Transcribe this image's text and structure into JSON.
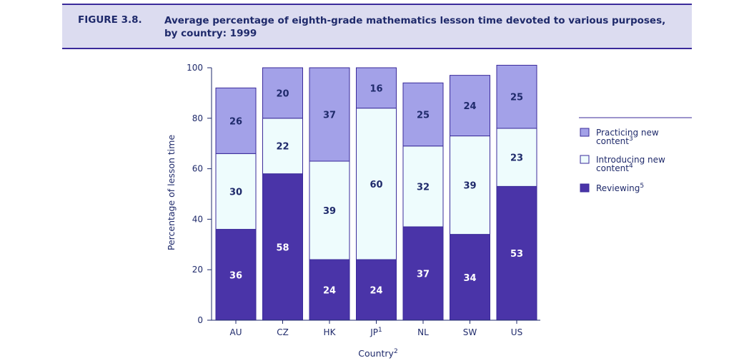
{
  "header": {
    "figure_label": "FIGURE 3.8.",
    "title": "Average percentage of eighth-grade mathematics lesson time devoted to various purposes, by country: 1999"
  },
  "colors": {
    "reviewing": "#4a34a8",
    "introducing": "#eefcfd",
    "practicing": "#a3a1e8",
    "text_dark": "#1f2a6b",
    "text_light": "#ffffff"
  },
  "chart_data": {
    "type": "bar",
    "stacked": true,
    "ylabel": "Percentage of lesson time",
    "xlabel": "Country",
    "xlabel_footnote": "2",
    "ylim": [
      0,
      100
    ],
    "yticks": [
      0,
      20,
      40,
      60,
      80,
      100
    ],
    "categories": [
      "AU",
      "CZ",
      "HK",
      "JP",
      "NL",
      "SW",
      "US"
    ],
    "category_footnotes": [
      "",
      "",
      "",
      "1",
      "",
      "",
      ""
    ],
    "series": [
      {
        "name": "Reviewing",
        "footnote": "5",
        "values": [
          36,
          58,
          24,
          24,
          37,
          34,
          53
        ]
      },
      {
        "name": "Introducing new content",
        "footnote": "4",
        "values": [
          30,
          22,
          39,
          60,
          32,
          39,
          23
        ]
      },
      {
        "name": "Practicing new content",
        "footnote": "3",
        "values": [
          26,
          20,
          37,
          16,
          25,
          24,
          25
        ]
      }
    ],
    "legend": {
      "position": "right",
      "items": [
        {
          "line1": "Practicing new",
          "line2": "content",
          "footnote": "3"
        },
        {
          "line1": "Introducing new",
          "line2": "content",
          "footnote": "4"
        },
        {
          "line1": "Reviewing",
          "line2": "",
          "footnote": "5"
        }
      ]
    }
  }
}
